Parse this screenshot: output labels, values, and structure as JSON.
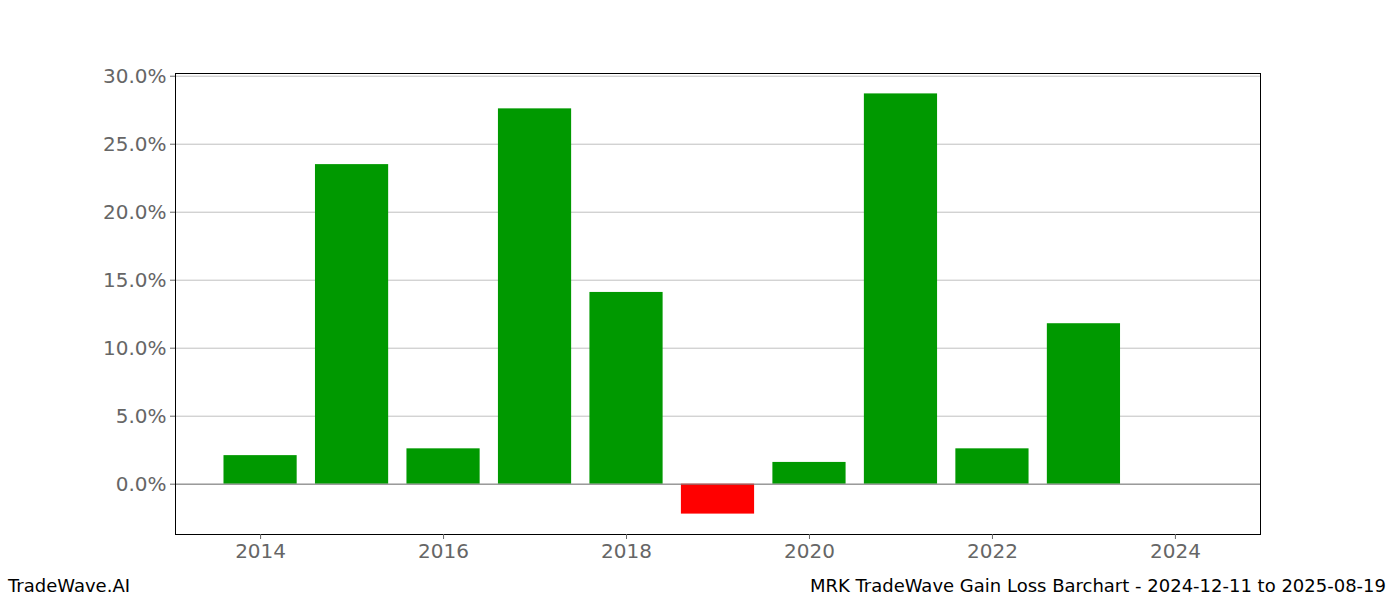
{
  "chart_data": {
    "type": "bar",
    "categories": [
      2014,
      2015,
      2016,
      2017,
      2018,
      2019,
      2020,
      2021,
      2022,
      2023
    ],
    "values": [
      2.1,
      23.5,
      2.6,
      27.6,
      14.1,
      -2.2,
      1.6,
      28.7,
      2.6,
      11.8
    ],
    "colors": [
      "#009900",
      "#009900",
      "#009900",
      "#009900",
      "#009900",
      "#ff0000",
      "#009900",
      "#009900",
      "#009900",
      "#009900"
    ],
    "xlim": [
      2013.07,
      2024.93
    ],
    "xticks": [
      2014,
      2016,
      2018,
      2020,
      2022,
      2024
    ],
    "ylim": [
      -3.7,
      30.2
    ],
    "yticks": [
      {
        "value": 0,
        "label": "0.0%"
      },
      {
        "value": 5,
        "label": "5.0%"
      },
      {
        "value": 10,
        "label": "10.0%"
      },
      {
        "value": 15,
        "label": "15.0%"
      },
      {
        "value": 20,
        "label": "20.0%"
      },
      {
        "value": 25,
        "label": "25.0%"
      },
      {
        "value": 30,
        "label": "30.0%"
      }
    ],
    "grid": true,
    "footer": [
      "TradeWave.AI",
      "MRK TradeWave Gain Loss Barchart - 2024-12-11 to 2025-08-19"
    ]
  }
}
